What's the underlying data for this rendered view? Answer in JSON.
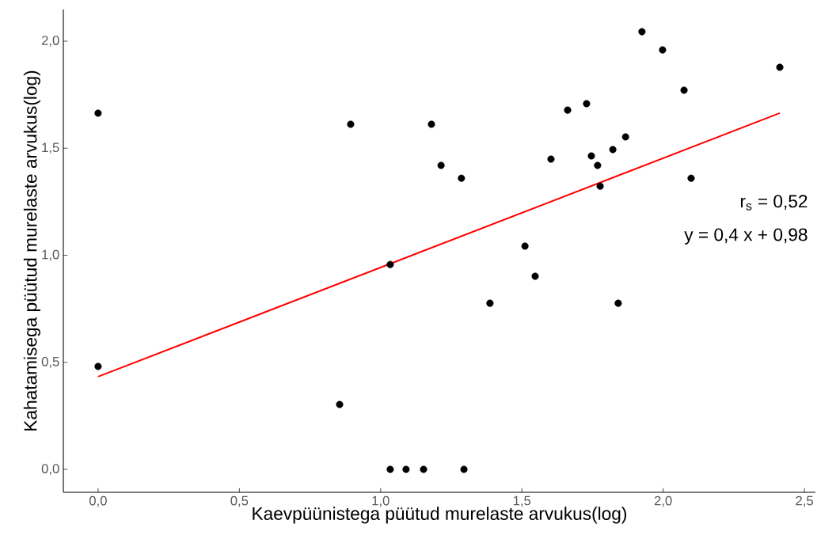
{
  "chart_data": {
    "type": "scatter",
    "xlabel": "Kaevpüünistega püütud murelaste arvukus(log)",
    "ylabel": "Kahatamisega püütud murelaste arvukus(log)",
    "xlim": [
      -0.123,
      2.539
    ],
    "ylim": [
      -0.107,
      2.148
    ],
    "xticks": [
      {
        "value": 0,
        "label": "0,0"
      },
      {
        "value": 0.5,
        "label": "0,5"
      },
      {
        "value": 1,
        "label": "1,0"
      },
      {
        "value": 1.5,
        "label": "1,5"
      },
      {
        "value": 2,
        "label": "2,0"
      },
      {
        "value": 2.5,
        "label": "2,5"
      }
    ],
    "yticks": [
      {
        "value": 0,
        "label": "0,0"
      },
      {
        "value": 0.5,
        "label": "0,5"
      },
      {
        "value": 1,
        "label": "1,0"
      },
      {
        "value": 1.5,
        "label": "1,5"
      },
      {
        "value": 2,
        "label": "2,0"
      }
    ],
    "grid": false,
    "annotations": [
      "r$_{s}$ = 0,52",
      "y = 0,4 x + 0,98"
    ],
    "series": [
      {
        "marker": "circle",
        "color": "#000000",
        "x": [
          0,
          0,
          0.855,
          0.894,
          1.034,
          1.034,
          1.09,
          1.152,
          1.18,
          1.214,
          1.286,
          1.295,
          1.387,
          1.511,
          1.547,
          1.603,
          1.662,
          1.729,
          1.746,
          1.768,
          1.777,
          1.822,
          1.841,
          1.867,
          1.925,
          1.998,
          2.074,
          2.099,
          2.413
        ],
        "values": [
          1.664,
          0.481,
          0.303,
          1.612,
          0.957,
          0,
          0,
          0,
          1.612,
          1.42,
          1.36,
          0,
          0.776,
          1.043,
          0.902,
          1.449,
          1.678,
          1.708,
          1.464,
          1.42,
          1.323,
          1.494,
          0.776,
          1.553,
          2.044,
          1.959,
          1.771,
          1.36,
          1.878
        ]
      },
      {
        "type": "line",
        "marker": "none",
        "color": "#ff0000",
        "x": [
          0,
          2.413
        ],
        "values": [
          0.433,
          1.664
        ]
      }
    ]
  }
}
